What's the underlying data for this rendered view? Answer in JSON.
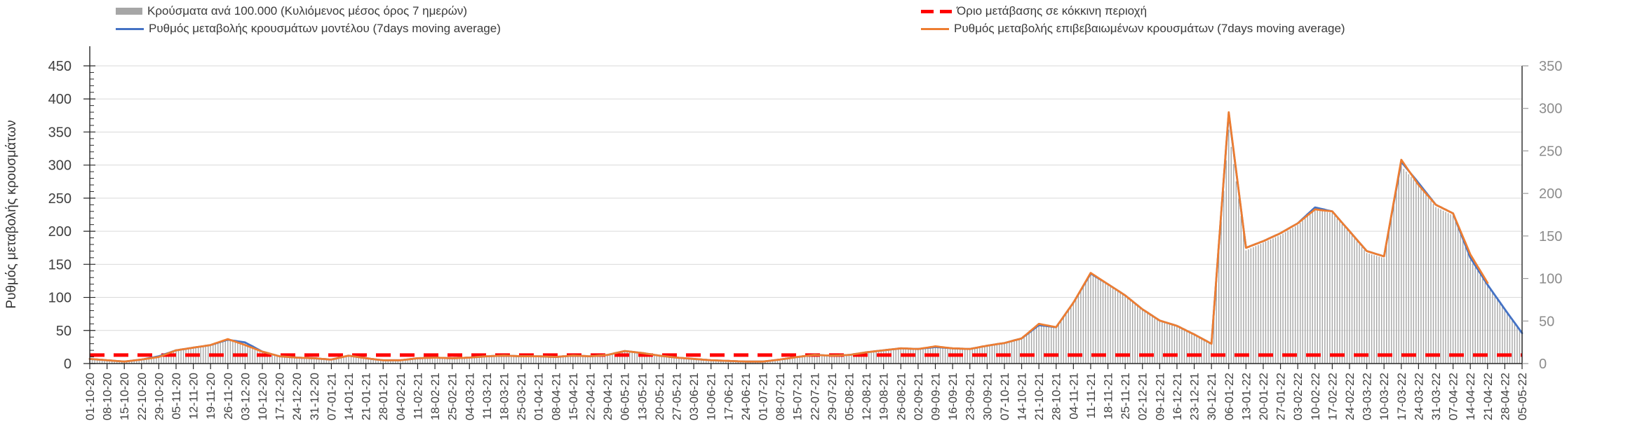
{
  "chart_data": {
    "type": "bar",
    "title": "",
    "grid": true,
    "legend_position": "top",
    "background_color": "#ffffff",
    "gridline_color": "#d9d9d9",
    "left_axis": {
      "title": "Ρυθμός μεταβολής κρουσμάτων",
      "min": 0,
      "max": 450,
      "step": 50,
      "minor_step": 10
    },
    "right_axis": {
      "min": 0,
      "max": 350,
      "step": 50
    },
    "x_label_dates": [
      "01-10-20",
      "08-10-20",
      "15-10-20",
      "22-10-20",
      "29-10-20",
      "05-11-20",
      "12-11-20",
      "19-11-20",
      "26-11-20",
      "03-12-20",
      "10-12-20",
      "17-12-20",
      "24-12-20",
      "31-12-20",
      "07-01-21",
      "14-01-21",
      "21-01-21",
      "28-01-21",
      "04-02-21",
      "11-02-21",
      "18-02-21",
      "25-02-21",
      "04-03-21",
      "11-03-21",
      "18-03-21",
      "25-03-21",
      "01-04-21",
      "08-04-21",
      "15-04-21",
      "22-04-21",
      "29-04-21",
      "06-05-21",
      "13-05-21",
      "20-05-21",
      "27-05-21",
      "03-06-21",
      "10-06-21",
      "17-06-21",
      "24-06-21",
      "01-07-21",
      "08-07-21",
      "15-07-21",
      "22-07-21",
      "29-07-21",
      "05-08-21",
      "12-08-21",
      "19-08-21",
      "26-08-21",
      "02-09-21",
      "09-09-21",
      "16-09-21",
      "23-09-21",
      "30-09-21",
      "07-10-21",
      "14-10-21",
      "21-10-21",
      "28-10-21",
      "04-11-21",
      "11-11-21",
      "18-11-21",
      "25-11-21",
      "02-12-21",
      "09-12-21",
      "16-12-21",
      "23-12-21",
      "30-12-21",
      "06-01-22",
      "13-01-22",
      "20-01-22",
      "27-01-22",
      "03-02-22",
      "10-02-22",
      "17-02-22",
      "24-02-22",
      "03-03-22",
      "10-03-22",
      "17-03-22",
      "24-03-22",
      "31-03-22",
      "07-04-22",
      "14-04-22",
      "21-04-22",
      "28-04-22",
      "05-05-22"
    ],
    "series": [
      {
        "name": "Κρούσματα ανά 100.000 (Κυλιόμενος μέσος όρος 7 ημερών)",
        "type": "bar",
        "axis": "right",
        "color": "#a6a6a6",
        "values": [
          5,
          4,
          2,
          5,
          8,
          15,
          18,
          21,
          28,
          25,
          14,
          8,
          7,
          6,
          5,
          9,
          6,
          4,
          4,
          6,
          7,
          6,
          7,
          8,
          9,
          8,
          8,
          8,
          9,
          8,
          10,
          14,
          12,
          9,
          7,
          5,
          4,
          3,
          2,
          2,
          5,
          8,
          10,
          9,
          10,
          13,
          15,
          17,
          17,
          19,
          17,
          17,
          21,
          24,
          29,
          45,
          42,
          71,
          105,
          92,
          79,
          63,
          50,
          44,
          34,
          23,
          275,
          133,
          142,
          151,
          163,
          181,
          177,
          154,
          130,
          124,
          232,
          210,
          184,
          174,
          122,
          91,
          63,
          35
        ]
      },
      {
        "name": "Όριο μετάβασης σε κόκκινη περιοχή",
        "type": "dashed-line",
        "axis": "right",
        "color": "#ff0000",
        "value": 10
      },
      {
        "name": "Ρυθμός μεταβολής κρουσμάτων μοντέλου (7days moving average)",
        "type": "line",
        "axis": "left",
        "color": "#4472c4",
        "values": [
          7,
          5,
          3,
          6,
          11,
          20,
          24,
          28,
          36,
          32,
          18,
          11,
          9,
          8,
          6,
          12,
          8,
          5,
          5,
          8,
          9,
          8,
          9,
          11,
          12,
          11,
          11,
          10,
          12,
          11,
          13,
          19,
          16,
          12,
          9,
          7,
          5,
          4,
          3,
          3,
          6,
          10,
          13,
          12,
          13,
          17,
          20,
          23,
          22,
          25,
          23,
          22,
          27,
          31,
          38,
          58,
          55,
          92,
          136,
          120,
          103,
          82,
          65,
          57,
          44,
          30,
          378,
          175,
          185,
          197,
          212,
          236,
          230,
          200,
          170,
          162,
          305,
          273,
          240,
          227,
          160,
          119,
          82,
          46
        ]
      },
      {
        "name": "Ρυθμός μεταβολής επιβεβαιωμένων κρουσμάτων (7days moving average)",
        "type": "line",
        "axis": "left",
        "color": "#ed7d31",
        "values": [
          7,
          5,
          3,
          6,
          10,
          20,
          24,
          28,
          37,
          28,
          18,
          11,
          9,
          8,
          6,
          12,
          8,
          5,
          5,
          8,
          9,
          8,
          9,
          11,
          12,
          11,
          11,
          10,
          12,
          11,
          13,
          19,
          16,
          12,
          9,
          7,
          5,
          4,
          3,
          3,
          6,
          10,
          13,
          12,
          13,
          17,
          20,
          23,
          22,
          26,
          23,
          22,
          27,
          31,
          38,
          60,
          55,
          92,
          137,
          120,
          103,
          82,
          65,
          57,
          44,
          30,
          380,
          175,
          185,
          197,
          212,
          233,
          230,
          200,
          170,
          162,
          308,
          270,
          240,
          227,
          165,
          122,
          null,
          null
        ]
      }
    ],
    "axis_text_color": "#404040",
    "right_axis_text_color": "#8c8c8c"
  }
}
